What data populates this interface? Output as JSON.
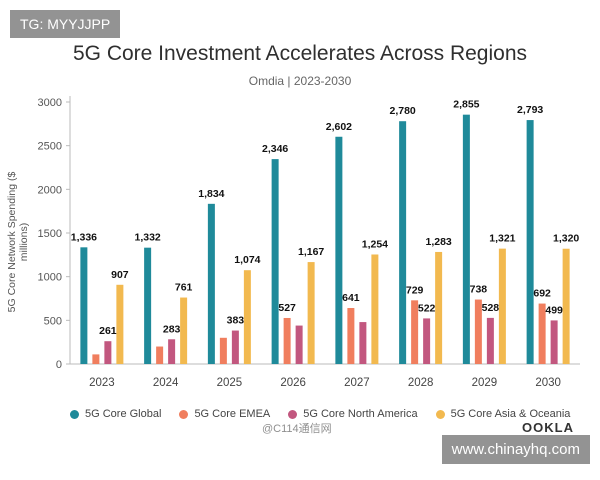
{
  "overlay": {
    "tag": "TG: MYYJJPP",
    "site": "www.chinayhq.com",
    "weibo": "@C114通信网",
    "brand": "OOKLA"
  },
  "chart_data": {
    "type": "bar",
    "title": "5G Core Investment Accelerates Across Regions",
    "subtitle": "Omdia | 2023-2030",
    "ylabel": "5G Core Network Spending ($ millions)",
    "xlabel": "",
    "ylim": [
      0,
      3000
    ],
    "yticks": [
      0,
      500,
      1000,
      1500,
      2000,
      2500,
      3000
    ],
    "categories": [
      "2023",
      "2024",
      "2025",
      "2026",
      "2027",
      "2028",
      "2029",
      "2030"
    ],
    "series": [
      {
        "name": "5G Core Global",
        "color": "#1f8a9a",
        "values": [
          1336,
          1332,
          1834,
          2346,
          2602,
          2780,
          2855,
          2793
        ]
      },
      {
        "name": "5G Core EMEA",
        "color": "#f07e5e",
        "values": [
          110,
          200,
          300,
          527,
          641,
          729,
          738,
          692
        ]
      },
      {
        "name": "5G Core North America",
        "color": "#c2577f",
        "values": [
          261,
          283,
          383,
          440,
          480,
          522,
          528,
          499
        ]
      },
      {
        "name": "5G Core Asia & Oceania",
        "color": "#f2b94f",
        "values": [
          907,
          761,
          1074,
          1167,
          1254,
          1283,
          1321,
          1320
        ]
      }
    ],
    "data_labels": [
      {
        "series": 0,
        "index": 0,
        "text": "1,336"
      },
      {
        "series": 0,
        "index": 1,
        "text": "1,332"
      },
      {
        "series": 0,
        "index": 2,
        "text": "1,834"
      },
      {
        "series": 0,
        "index": 3,
        "text": "2,346"
      },
      {
        "series": 0,
        "index": 4,
        "text": "2,602"
      },
      {
        "series": 0,
        "index": 5,
        "text": "2,780"
      },
      {
        "series": 0,
        "index": 6,
        "text": "2,855"
      },
      {
        "series": 0,
        "index": 7,
        "text": "2,793"
      },
      {
        "series": 3,
        "index": 0,
        "text": "907"
      },
      {
        "series": 3,
        "index": 1,
        "text": "761"
      },
      {
        "series": 3,
        "index": 2,
        "text": "1,074"
      },
      {
        "series": 3,
        "index": 3,
        "text": "1,167"
      },
      {
        "series": 3,
        "index": 4,
        "text": "1,254"
      },
      {
        "series": 3,
        "index": 5,
        "text": "1,283"
      },
      {
        "series": 3,
        "index": 6,
        "text": "1,321"
      },
      {
        "series": 3,
        "index": 7,
        "text": "1,320"
      },
      {
        "series": 2,
        "index": 0,
        "text": "261"
      },
      {
        "series": 2,
        "index": 1,
        "text": "283"
      },
      {
        "series": 2,
        "index": 2,
        "text": "383"
      },
      {
        "series": 1,
        "index": 3,
        "text": "527"
      },
      {
        "series": 1,
        "index": 4,
        "text": "641"
      },
      {
        "series": 1,
        "index": 5,
        "text": "729"
      },
      {
        "series": 1,
        "index": 6,
        "text": "738"
      },
      {
        "series": 1,
        "index": 7,
        "text": "692"
      },
      {
        "series": 2,
        "index": 5,
        "text": "522"
      },
      {
        "series": 2,
        "index": 6,
        "text": "528"
      },
      {
        "series": 2,
        "index": 7,
        "text": "499"
      }
    ],
    "grid": false,
    "legend_position": "bottom"
  }
}
